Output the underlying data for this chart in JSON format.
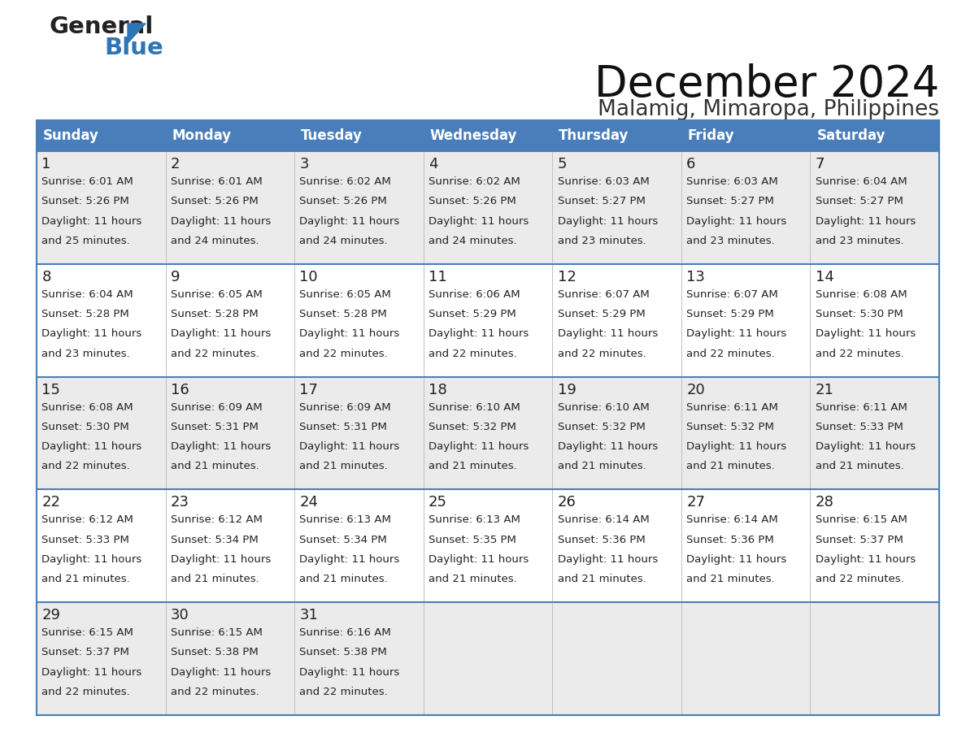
{
  "title": "December 2024",
  "subtitle": "Malamig, Mimaropa, Philippines",
  "header_bg_color": "#4A7EBB",
  "header_text_color": "#FFFFFF",
  "header_font_size": 12,
  "day_names": [
    "Sunday",
    "Monday",
    "Tuesday",
    "Wednesday",
    "Thursday",
    "Friday",
    "Saturday"
  ],
  "title_font_size": 38,
  "subtitle_font_size": 19,
  "cell_text_color": "#222222",
  "day_num_font_size": 13,
  "info_font_size": 9.5,
  "bg_color": "#FFFFFF",
  "grid_color": "#4A7EBB",
  "row_bg_odd": "#EBEBEB",
  "row_bg_even": "#FFFFFF",
  "logo_color_general": "#222222",
  "logo_color_blue": "#2E75B6",
  "logo_triangle_color": "#2E75B6",
  "days_data": [
    {
      "day": 1,
      "col": 0,
      "row": 0,
      "sunrise": "6:01 AM",
      "sunset": "5:26 PM",
      "minutes": "25"
    },
    {
      "day": 2,
      "col": 1,
      "row": 0,
      "sunrise": "6:01 AM",
      "sunset": "5:26 PM",
      "minutes": "24"
    },
    {
      "day": 3,
      "col": 2,
      "row": 0,
      "sunrise": "6:02 AM",
      "sunset": "5:26 PM",
      "minutes": "24"
    },
    {
      "day": 4,
      "col": 3,
      "row": 0,
      "sunrise": "6:02 AM",
      "sunset": "5:26 PM",
      "minutes": "24"
    },
    {
      "day": 5,
      "col": 4,
      "row": 0,
      "sunrise": "6:03 AM",
      "sunset": "5:27 PM",
      "minutes": "23"
    },
    {
      "day": 6,
      "col": 5,
      "row": 0,
      "sunrise": "6:03 AM",
      "sunset": "5:27 PM",
      "minutes": "23"
    },
    {
      "day": 7,
      "col": 6,
      "row": 0,
      "sunrise": "6:04 AM",
      "sunset": "5:27 PM",
      "minutes": "23"
    },
    {
      "day": 8,
      "col": 0,
      "row": 1,
      "sunrise": "6:04 AM",
      "sunset": "5:28 PM",
      "minutes": "23"
    },
    {
      "day": 9,
      "col": 1,
      "row": 1,
      "sunrise": "6:05 AM",
      "sunset": "5:28 PM",
      "minutes": "22"
    },
    {
      "day": 10,
      "col": 2,
      "row": 1,
      "sunrise": "6:05 AM",
      "sunset": "5:28 PM",
      "minutes": "22"
    },
    {
      "day": 11,
      "col": 3,
      "row": 1,
      "sunrise": "6:06 AM",
      "sunset": "5:29 PM",
      "minutes": "22"
    },
    {
      "day": 12,
      "col": 4,
      "row": 1,
      "sunrise": "6:07 AM",
      "sunset": "5:29 PM",
      "minutes": "22"
    },
    {
      "day": 13,
      "col": 5,
      "row": 1,
      "sunrise": "6:07 AM",
      "sunset": "5:29 PM",
      "minutes": "22"
    },
    {
      "day": 14,
      "col": 6,
      "row": 1,
      "sunrise": "6:08 AM",
      "sunset": "5:30 PM",
      "minutes": "22"
    },
    {
      "day": 15,
      "col": 0,
      "row": 2,
      "sunrise": "6:08 AM",
      "sunset": "5:30 PM",
      "minutes": "22"
    },
    {
      "day": 16,
      "col": 1,
      "row": 2,
      "sunrise": "6:09 AM",
      "sunset": "5:31 PM",
      "minutes": "21"
    },
    {
      "day": 17,
      "col": 2,
      "row": 2,
      "sunrise": "6:09 AM",
      "sunset": "5:31 PM",
      "minutes": "21"
    },
    {
      "day": 18,
      "col": 3,
      "row": 2,
      "sunrise": "6:10 AM",
      "sunset": "5:32 PM",
      "minutes": "21"
    },
    {
      "day": 19,
      "col": 4,
      "row": 2,
      "sunrise": "6:10 AM",
      "sunset": "5:32 PM",
      "minutes": "21"
    },
    {
      "day": 20,
      "col": 5,
      "row": 2,
      "sunrise": "6:11 AM",
      "sunset": "5:32 PM",
      "minutes": "21"
    },
    {
      "day": 21,
      "col": 6,
      "row": 2,
      "sunrise": "6:11 AM",
      "sunset": "5:33 PM",
      "minutes": "21"
    },
    {
      "day": 22,
      "col": 0,
      "row": 3,
      "sunrise": "6:12 AM",
      "sunset": "5:33 PM",
      "minutes": "21"
    },
    {
      "day": 23,
      "col": 1,
      "row": 3,
      "sunrise": "6:12 AM",
      "sunset": "5:34 PM",
      "minutes": "21"
    },
    {
      "day": 24,
      "col": 2,
      "row": 3,
      "sunrise": "6:13 AM",
      "sunset": "5:34 PM",
      "minutes": "21"
    },
    {
      "day": 25,
      "col": 3,
      "row": 3,
      "sunrise": "6:13 AM",
      "sunset": "5:35 PM",
      "minutes": "21"
    },
    {
      "day": 26,
      "col": 4,
      "row": 3,
      "sunrise": "6:14 AM",
      "sunset": "5:36 PM",
      "minutes": "21"
    },
    {
      "day": 27,
      "col": 5,
      "row": 3,
      "sunrise": "6:14 AM",
      "sunset": "5:36 PM",
      "minutes": "21"
    },
    {
      "day": 28,
      "col": 6,
      "row": 3,
      "sunrise": "6:15 AM",
      "sunset": "5:37 PM",
      "minutes": "22"
    },
    {
      "day": 29,
      "col": 0,
      "row": 4,
      "sunrise": "6:15 AM",
      "sunset": "5:37 PM",
      "minutes": "22"
    },
    {
      "day": 30,
      "col": 1,
      "row": 4,
      "sunrise": "6:15 AM",
      "sunset": "5:38 PM",
      "minutes": "22"
    },
    {
      "day": 31,
      "col": 2,
      "row": 4,
      "sunrise": "6:16 AM",
      "sunset": "5:38 PM",
      "minutes": "22"
    }
  ]
}
